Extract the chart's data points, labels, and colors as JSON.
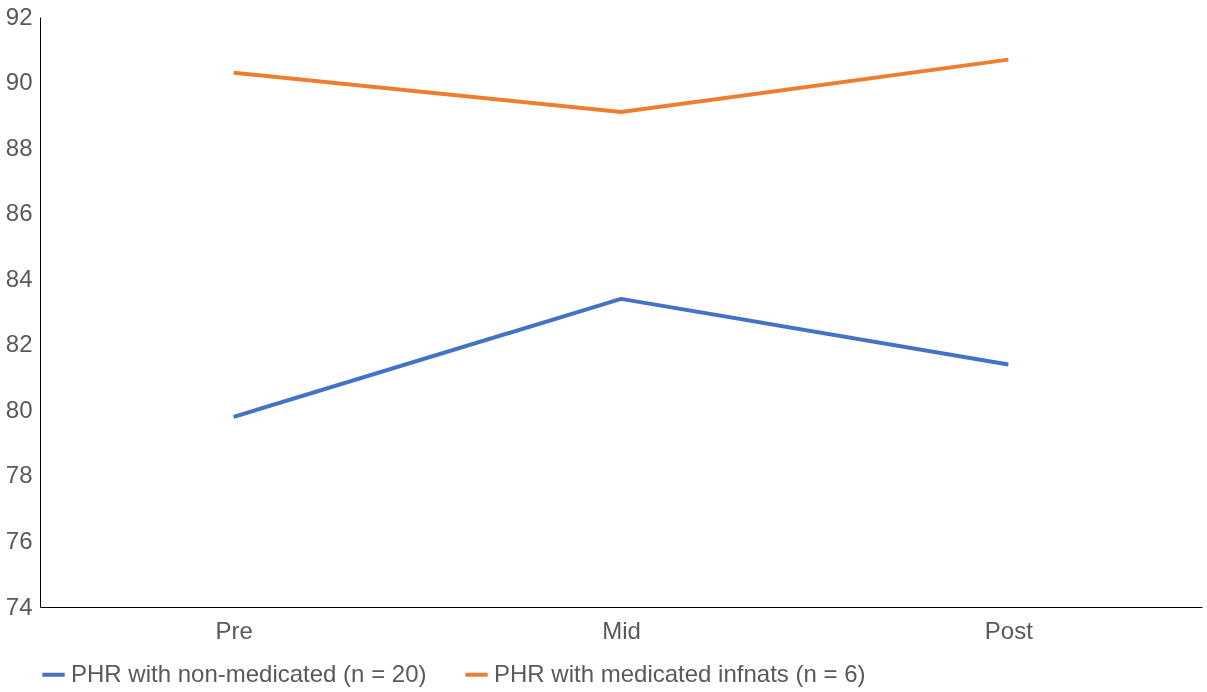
{
  "chart_data": {
    "type": "line",
    "categories": [
      "Pre",
      "Mid",
      "Post"
    ],
    "series": [
      {
        "name": "PHR with non-medicated (n = 20)",
        "color": "#4472c4",
        "values": [
          79.8,
          83.4,
          81.4
        ]
      },
      {
        "name": "PHR with medicated infnats (n = 6)",
        "color": "#ed7d31",
        "values": [
          90.3,
          89.1,
          90.7
        ]
      }
    ],
    "ylim": [
      74,
      92
    ],
    "yticks": [
      74,
      76,
      78,
      80,
      82,
      84,
      86,
      88,
      90,
      92
    ],
    "grid": false,
    "legend": "bottom",
    "marker": "none",
    "line_style": "solid"
  }
}
